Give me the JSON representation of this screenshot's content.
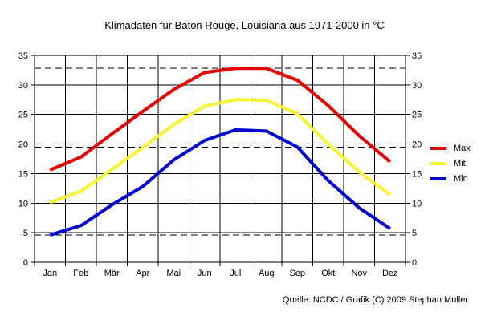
{
  "title": "Klimadaten für Baton Rouge, Louisiana aus 1971-2000 in °C",
  "source_note": "Quelle: NCDC / Grafik (C) 2009 Stephan Muller",
  "legend": {
    "position": "right",
    "items": [
      {
        "label": "Max",
        "color": "#e60000"
      },
      {
        "label": "Mit",
        "color": "#f5f533"
      },
      {
        "label": "Min",
        "color": "#0000d5"
      }
    ]
  },
  "chart_data": {
    "type": "line",
    "title": "Klimadaten für Baton Rouge, Louisiana aus 1971-2000 in °C",
    "xlabel": "",
    "ylabel": "",
    "unit": "°C",
    "categories": [
      "Jan",
      "Feb",
      "Mär",
      "Apr",
      "Mai",
      "Jun",
      "Jul",
      "Aug",
      "Sep",
      "Okt",
      "Nov",
      "Dez"
    ],
    "series": [
      {
        "name": "Max",
        "color": "#e60000",
        "values": [
          15.6,
          17.8,
          21.7,
          25.5,
          29.2,
          32.1,
          32.8,
          32.8,
          30.8,
          26.5,
          21.4,
          17.0
        ]
      },
      {
        "name": "Mit",
        "color": "#f5f533",
        "values": [
          10.1,
          12.0,
          15.7,
          19.4,
          23.3,
          26.4,
          27.5,
          27.4,
          25.1,
          20.0,
          15.3,
          11.4
        ]
      },
      {
        "name": "Min",
        "color": "#0000d5",
        "values": [
          4.6,
          6.2,
          9.7,
          12.8,
          17.3,
          20.6,
          22.4,
          22.2,
          19.5,
          13.8,
          9.2,
          5.7
        ]
      }
    ],
    "ylim": [
      0,
      35
    ],
    "y_ticks": [
      0,
      5,
      10,
      15,
      20,
      25,
      30,
      35
    ],
    "y_axis_sides": "both",
    "grid": true,
    "dashed_reference_lines": [
      32.8,
      19.5,
      4.6
    ],
    "legend_position": "right"
  },
  "colors": {
    "background": "#ffffff",
    "grid": "#000000",
    "text": "#000000",
    "max_line": "#e60000",
    "mit_line": "#f5f533",
    "min_line": "#0000d5"
  }
}
